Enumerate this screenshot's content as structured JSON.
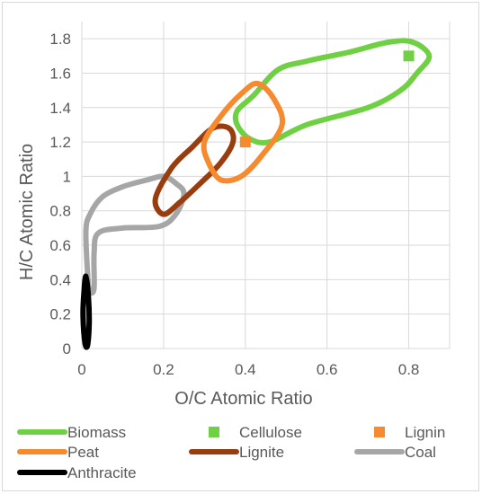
{
  "chart_data": {
    "type": "scatter",
    "title": "",
    "xlabel": "O/C Atomic Ratio",
    "ylabel": "H/C Atomic Ratio",
    "xlim": [
      0,
      0.9
    ],
    "ylim": [
      0,
      1.9
    ],
    "x_ticks": [
      0,
      0.2,
      0.4,
      0.6,
      0.8
    ],
    "y_ticks": [
      0,
      0.2,
      0.4,
      0.6,
      0.8,
      1,
      1.2,
      1.4,
      1.6,
      1.8
    ],
    "grid": true,
    "legend_position": "bottom",
    "series": [
      {
        "name": "Biomass",
        "kind": "region",
        "color": "#70d044",
        "points": [
          [
            0.48,
            1.62
          ],
          [
            0.55,
            1.67
          ],
          [
            0.65,
            1.72
          ],
          [
            0.75,
            1.78
          ],
          [
            0.81,
            1.78
          ],
          [
            0.85,
            1.7
          ],
          [
            0.82,
            1.6
          ],
          [
            0.78,
            1.5
          ],
          [
            0.7,
            1.4
          ],
          [
            0.55,
            1.3
          ],
          [
            0.46,
            1.2
          ],
          [
            0.41,
            1.22
          ],
          [
            0.38,
            1.3
          ],
          [
            0.38,
            1.38
          ],
          [
            0.42,
            1.47
          ]
        ]
      },
      {
        "name": "Cellulose",
        "kind": "marker",
        "marker": "square",
        "color": "#70d044",
        "points": [
          [
            0.8,
            1.7
          ]
        ]
      },
      {
        "name": "Lignin",
        "kind": "marker",
        "marker": "square",
        "color": "#f58a2e",
        "points": [
          [
            0.4,
            1.2
          ]
        ]
      },
      {
        "name": "Peat",
        "kind": "region",
        "color": "#f58a2e",
        "points": [
          [
            0.34,
            1.35
          ],
          [
            0.39,
            1.48
          ],
          [
            0.43,
            1.54
          ],
          [
            0.47,
            1.45
          ],
          [
            0.49,
            1.3
          ],
          [
            0.44,
            1.12
          ],
          [
            0.39,
            1.0
          ],
          [
            0.34,
            0.98
          ],
          [
            0.31,
            1.08
          ],
          [
            0.3,
            1.2
          ]
        ]
      },
      {
        "name": "Lignite",
        "kind": "region",
        "color": "#983d10",
        "points": [
          [
            0.22,
            1.05
          ],
          [
            0.27,
            1.17
          ],
          [
            0.32,
            1.28
          ],
          [
            0.36,
            1.28
          ],
          [
            0.37,
            1.2
          ],
          [
            0.34,
            1.08
          ],
          [
            0.29,
            0.96
          ],
          [
            0.24,
            0.85
          ],
          [
            0.2,
            0.78
          ],
          [
            0.18,
            0.87
          ]
        ]
      },
      {
        "name": "Coal",
        "kind": "region",
        "color": "#a6a6a6",
        "points": [
          [
            0.01,
            0.68
          ],
          [
            0.02,
            0.78
          ],
          [
            0.05,
            0.88
          ],
          [
            0.1,
            0.94
          ],
          [
            0.16,
            0.98
          ],
          [
            0.2,
            1.0
          ],
          [
            0.23,
            0.96
          ],
          [
            0.25,
            0.9
          ],
          [
            0.23,
            0.78
          ],
          [
            0.19,
            0.71
          ],
          [
            0.1,
            0.7
          ],
          [
            0.04,
            0.67
          ],
          [
            0.03,
            0.55
          ],
          [
            0.03,
            0.35
          ],
          [
            0.02,
            0.33
          ],
          [
            0.015,
            0.4
          ]
        ]
      },
      {
        "name": "Anthracite",
        "kind": "region",
        "color": "#000000",
        "points": [
          [
            0.008,
            0.03
          ],
          [
            0.003,
            0.18
          ],
          [
            0.005,
            0.32
          ],
          [
            0.01,
            0.42
          ],
          [
            0.016,
            0.3
          ],
          [
            0.018,
            0.15
          ],
          [
            0.014,
            0.02
          ]
        ]
      }
    ]
  }
}
